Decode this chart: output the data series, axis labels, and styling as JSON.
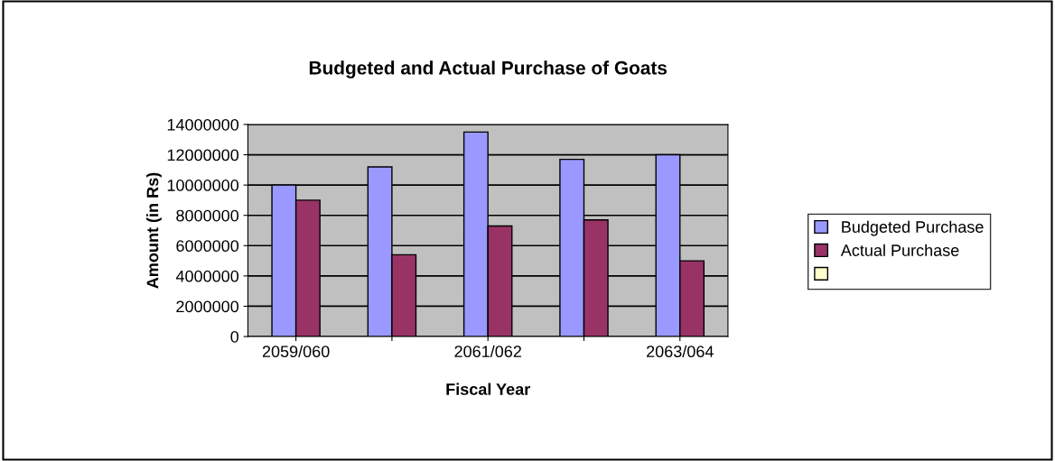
{
  "chart_data": {
    "type": "bar",
    "title": "Budgeted and Actual Purchase of Goats",
    "xlabel": "Fiscal Year",
    "ylabel": "Amount (in Rs)",
    "categories": [
      "2059/060",
      null,
      "2061/062",
      null,
      "2063/064"
    ],
    "series": [
      {
        "name": "Budgeted Purchase",
        "color": "#9999ff",
        "values": [
          10000000,
          11200000,
          13500000,
          11700000,
          12000000
        ]
      },
      {
        "name": "Actual Purchase",
        "color": "#993366",
        "values": [
          9000000,
          5400000,
          7300000,
          7700000,
          5000000
        ]
      },
      {
        "color": "#ffffcc",
        "values": [
          null,
          null,
          null,
          null,
          null
        ]
      }
    ],
    "ylim": [
      0,
      14000000
    ],
    "yticks": [
      0,
      2000000,
      4000000,
      6000000,
      8000000,
      10000000,
      12000000,
      14000000
    ],
    "grid": "y",
    "legend": "right"
  }
}
